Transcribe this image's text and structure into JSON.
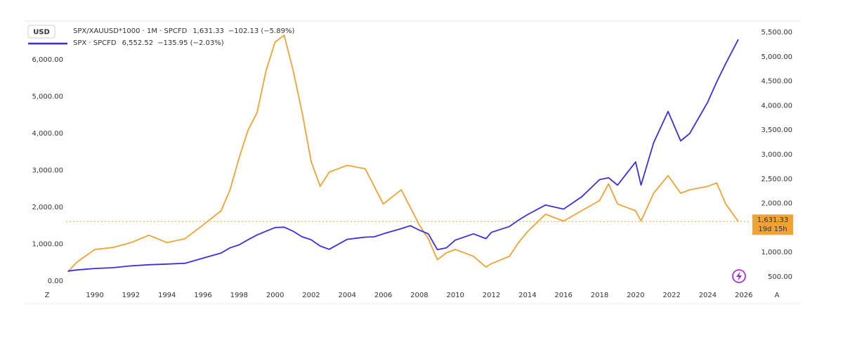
{
  "chart_data": {
    "type": "line",
    "currency_label": "USD",
    "corner_labels": [
      "Z",
      "A"
    ],
    "x": [
      1988.5,
      1989,
      1990,
      1991,
      1992,
      1993,
      1994,
      1995,
      1996,
      1997,
      1997.5,
      1998,
      1998.5,
      1999,
      1999.5,
      2000,
      2000.5,
      2001,
      2001.5,
      2002,
      2002.5,
      2003,
      2004,
      2005,
      2005.5,
      2006,
      2007,
      2007.5,
      2008,
      2008.5,
      2009,
      2009.5,
      2010,
      2011,
      2011.7,
      2012,
      2013,
      2013.5,
      2014,
      2015,
      2016,
      2017,
      2018,
      2018.5,
      2019,
      2020,
      2020.3,
      2021,
      2021.8,
      2022.5,
      2023,
      2024,
      2024.5,
      2025,
      2025.7
    ],
    "series": [
      {
        "name": "SPX/XAUUSD*1000 · 1M · SPCFD",
        "color": "#f0a235",
        "axis": "y2",
        "last_value_label": "1,631.33",
        "change_label": "−102.13 (−5.89%)",
        "countdown": "19d 15h",
        "values": [
          600,
          800,
          1060,
          1100,
          1200,
          1350,
          1200,
          1280,
          1560,
          1850,
          2280,
          2930,
          3500,
          3860,
          4720,
          5300,
          5440,
          4720,
          3860,
          2860,
          2350,
          2640,
          2780,
          2710,
          2350,
          1990,
          2280,
          1920,
          1560,
          1280,
          850,
          990,
          1060,
          920,
          700,
          770,
          920,
          1200,
          1420,
          1780,
          1640,
          1850,
          2060,
          2400,
          1990,
          1850,
          1640,
          2210,
          2570,
          2210,
          2280,
          2350,
          2420,
          1990,
          1631.33
        ]
      },
      {
        "name": "SPX · SPCFD",
        "color": "#3a2fe0",
        "last_value_label": "6,552.52",
        "change_label": "−135.95 (−2.03%)",
        "values": [
          270,
          300,
          340,
          360,
          410,
          440,
          460,
          480,
          620,
          760,
          900,
          980,
          1120,
          1250,
          1350,
          1450,
          1460,
          1350,
          1200,
          1120,
          950,
          860,
          1130,
          1190,
          1200,
          1280,
          1420,
          1500,
          1380,
          1280,
          850,
          900,
          1110,
          1280,
          1150,
          1320,
          1480,
          1650,
          1800,
          2060,
          1950,
          2280,
          2750,
          2800,
          2600,
          3230,
          2600,
          3750,
          4600,
          3800,
          4000,
          4850,
          5400,
          5900,
          6552.52
        ]
      }
    ],
    "xlim": [
      1988.4,
      2026.4
    ],
    "xticks": [
      1990,
      1992,
      1994,
      1996,
      1998,
      2000,
      2002,
      2004,
      2006,
      2008,
      2010,
      2012,
      2014,
      2016,
      2018,
      2020,
      2022,
      2024,
      2026
    ],
    "ylim": [
      -230,
      7050
    ],
    "yticks": [
      {
        "value": 0,
        "label": "0.00"
      },
      {
        "value": 1000,
        "label": "1,000.00"
      },
      {
        "value": 2000,
        "label": "2,000.00"
      },
      {
        "value": 3000,
        "label": "3,000.00"
      },
      {
        "value": 4000,
        "label": "4,000.00"
      },
      {
        "value": 5000,
        "label": "5,000.00"
      },
      {
        "value": 6000,
        "label": "6,000.00"
      }
    ],
    "y2lim": [
      241,
      5730
    ],
    "y2ticks": [
      {
        "value": 500,
        "label": "500.00"
      },
      {
        "value": 1000,
        "label": "1,000.00"
      },
      {
        "value": 1500,
        "label": "1,500.00"
      },
      {
        "value": 2000,
        "label": "2,000.00"
      },
      {
        "value": 2500,
        "label": "2,500.00"
      },
      {
        "value": 3000,
        "label": "3,000.00"
      },
      {
        "value": 3500,
        "label": "3,500.00"
      },
      {
        "value": 4000,
        "label": "4,000.00"
      },
      {
        "value": 4500,
        "label": "4,500.00"
      },
      {
        "value": 5000,
        "label": "5,000.00"
      },
      {
        "value": 5500,
        "label": "5,500.00"
      }
    ],
    "grid": false
  }
}
